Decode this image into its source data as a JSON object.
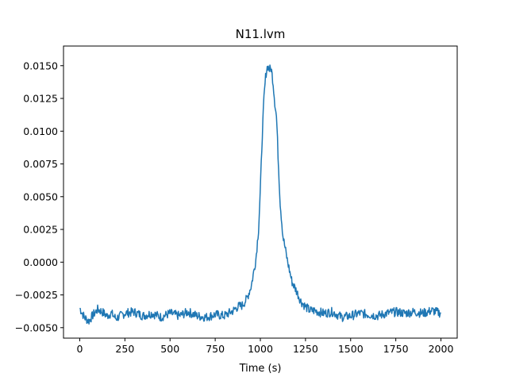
{
  "chart_data": {
    "type": "line",
    "title": "N11.lvm",
    "xlabel": "Time (s)",
    "ylabel": "",
    "xlim": [
      -90,
      2090
    ],
    "ylim": [
      -0.0058,
      0.0165
    ],
    "xticks": [
      0,
      250,
      500,
      750,
      1000,
      1250,
      1500,
      1750,
      2000
    ],
    "xtick_labels": [
      "0",
      "250",
      "500",
      "750",
      "1000",
      "1250",
      "1500",
      "1750",
      "2000"
    ],
    "yticks": [
      -0.005,
      -0.0025,
      0.0,
      0.0025,
      0.005,
      0.0075,
      0.01,
      0.0125,
      0.015
    ],
    "ytick_labels": [
      "−0.0050",
      "−0.0025",
      "0.0000",
      "0.0025",
      "0.0050",
      "0.0075",
      "0.0100",
      "0.0125",
      "0.0150"
    ],
    "grid": false,
    "legend": "none",
    "line_color": "#1f77b4",
    "series": [
      {
        "x": [
          0,
          25,
          50,
          75,
          100,
          125,
          150,
          175,
          200,
          250,
          300,
          350,
          400,
          450,
          500,
          550,
          600,
          650,
          700,
          750,
          800,
          850,
          875,
          900,
          925,
          950,
          975,
          990,
          1000,
          1010,
          1020,
          1030,
          1040,
          1050,
          1060,
          1070,
          1080,
          1090,
          1100,
          1110,
          1125,
          1150,
          1175,
          1200,
          1225,
          1250,
          1275,
          1300,
          1350,
          1400,
          1450,
          1500,
          1550,
          1600,
          1650,
          1700,
          1750,
          1800,
          1850,
          1900,
          1950,
          2000
        ],
        "y": [
          -0.0035,
          -0.0042,
          -0.0045,
          -0.004,
          -0.0036,
          -0.0038,
          -0.0041,
          -0.0039,
          -0.0043,
          -0.0039,
          -0.0038,
          -0.0041,
          -0.0039,
          -0.0042,
          -0.0039,
          -0.0041,
          -0.0038,
          -0.0041,
          -0.0042,
          -0.004,
          -0.0041,
          -0.0037,
          -0.0034,
          -0.0033,
          -0.0028,
          -0.0018,
          0.0002,
          0.0025,
          0.0055,
          0.0095,
          0.0125,
          0.0143,
          0.015,
          0.0147,
          0.0148,
          0.0138,
          0.0122,
          0.011,
          0.0075,
          0.0045,
          0.002,
          0.0001,
          -0.0015,
          -0.0022,
          -0.003,
          -0.0034,
          -0.0037,
          -0.0037,
          -0.0039,
          -0.0038,
          -0.0042,
          -0.0041,
          -0.0039,
          -0.004,
          -0.0041,
          -0.0039,
          -0.0038,
          -0.0039,
          -0.0038,
          -0.0039,
          -0.0037,
          -0.0039
        ]
      }
    ]
  }
}
